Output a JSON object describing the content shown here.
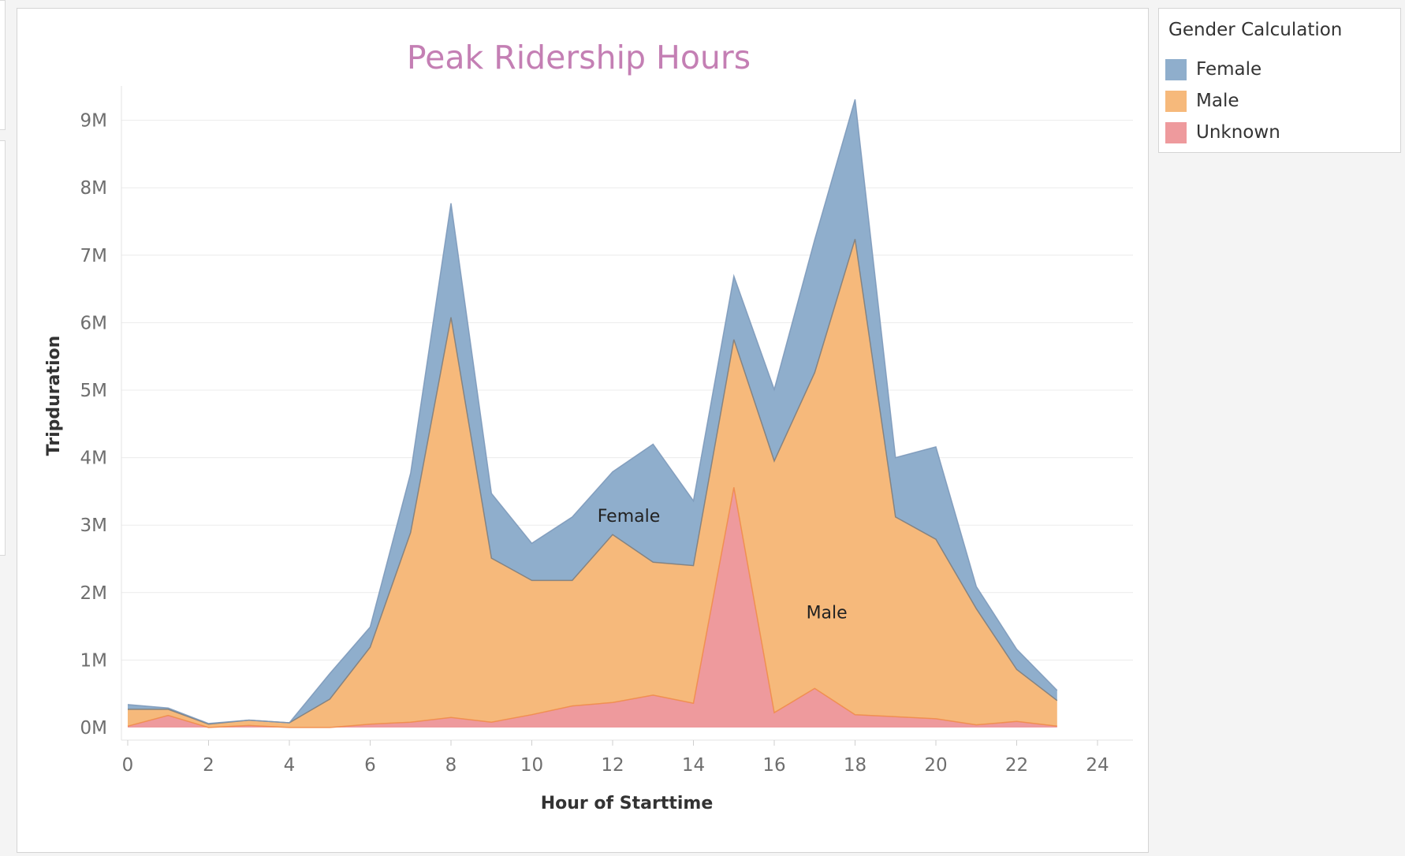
{
  "chart_data": {
    "type": "area",
    "stacked": true,
    "title": "Peak Ridership Hours",
    "xlabel": "Hour of Starttime",
    "ylabel": "Tripduration",
    "xlim": [
      0,
      24
    ],
    "ylim": [
      0,
      9000000
    ],
    "x_ticks": [
      "0",
      "2",
      "4",
      "6",
      "8",
      "10",
      "12",
      "14",
      "16",
      "18",
      "20",
      "22",
      "24"
    ],
    "y_ticks": [
      "0M",
      "1M",
      "2M",
      "3M",
      "4M",
      "5M",
      "6M",
      "7M",
      "8M",
      "9M"
    ],
    "grid": "horizontal",
    "colors": {
      "Female": "#8faecc",
      "Male": "#f6b97b",
      "Unknown": "#ee9a9d"
    },
    "area_labels": [
      "Female",
      "Male"
    ],
    "x": [
      0,
      1,
      2,
      3,
      4,
      5,
      6,
      7,
      8,
      9,
      10,
      11,
      12,
      13,
      14,
      15,
      16,
      17,
      18,
      19,
      20,
      21,
      22,
      23
    ],
    "series": [
      {
        "name": "Unknown",
        "values": [
          20000,
          180000,
          0,
          30000,
          0,
          0,
          50000,
          80000,
          150000,
          80000,
          190000,
          320000,
          370000,
          480000,
          360000,
          3560000,
          220000,
          580000,
          190000,
          160000,
          130000,
          40000,
          90000,
          20000
        ]
      },
      {
        "name": "Male",
        "values": [
          250000,
          90000,
          50000,
          80000,
          70000,
          420000,
          1140000,
          2810000,
          5930000,
          2430000,
          1990000,
          1860000,
          2490000,
          1970000,
          2040000,
          2190000,
          3730000,
          4680000,
          7050000,
          2960000,
          2660000,
          1720000,
          770000,
          380000
        ]
      },
      {
        "name": "Female",
        "values": [
          70000,
          20000,
          10000,
          0,
          0,
          380000,
          300000,
          880000,
          1690000,
          960000,
          550000,
          940000,
          930000,
          1750000,
          960000,
          940000,
          1060000,
          1970000,
          2070000,
          880000,
          1370000,
          330000,
          300000,
          150000
        ]
      }
    ]
  },
  "legend": {
    "title": "Gender Calculation",
    "items": [
      {
        "label": "Female",
        "color": "#8faecc"
      },
      {
        "label": "Male",
        "color": "#f6b97b"
      },
      {
        "label": "Unknown",
        "color": "#ee9a9d"
      }
    ]
  }
}
